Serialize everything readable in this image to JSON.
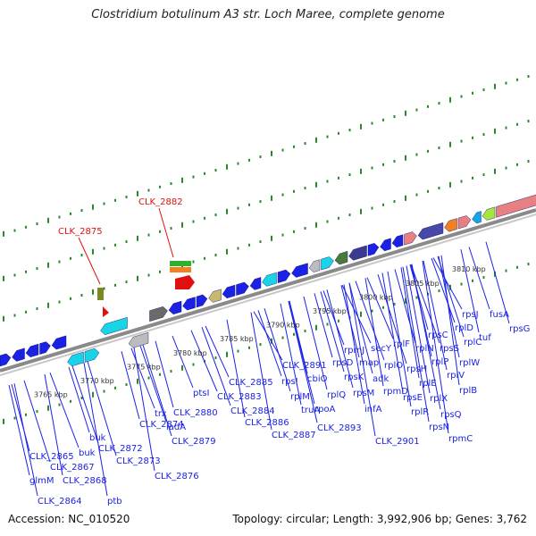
{
  "title": "Clostridium botulinum A3 str. Loch Maree, complete genome",
  "accession_label": "Accession: NC_010520",
  "summary_label": "Topology: circular; Length: 3,992,906 bp; Genes: 3,762",
  "colors": {
    "forward_gene": "#1b22e6",
    "reverse_gene": "#1b22e6",
    "rrna": "#e87f82",
    "trna": "#f0a050",
    "highlight_label": "#e01010",
    "tick": "#2a8a2a",
    "backbone": "#8a8a8a"
  },
  "axis_labels": [
    {
      "text": "3765 kbp",
      "pos": 3765
    },
    {
      "text": "3770 kbp",
      "pos": 3770
    },
    {
      "text": "3775 kbp",
      "pos": 3775
    },
    {
      "text": "3780 kbp",
      "pos": 3780
    },
    {
      "text": "3785 kbp",
      "pos": 3785
    },
    {
      "text": "3790 kbp",
      "pos": 3790
    },
    {
      "text": "3795 kbp",
      "pos": 3795
    },
    {
      "text": "3800 kbp",
      "pos": 3800
    },
    {
      "text": "3805 kbp",
      "pos": 3805
    },
    {
      "text": "3810 kbp",
      "pos": 3810
    }
  ],
  "highlighted_genes": [
    "CLK_2875",
    "CLK_2882"
  ],
  "gene_labels": [
    "CLK_2865",
    "glmM",
    "CLK_2864",
    "CLK_2867",
    "buk",
    "CLK_2868",
    "buk",
    "ptb",
    "CLK_2872",
    "CLK_2873",
    "CLK_2874",
    "CLK_2876",
    "trx",
    "iadA",
    "CLK_2879",
    "CLK_2880",
    "ptsI",
    "CLK_2885",
    "CLK_2883",
    "CLK_2884",
    "CLK_2886",
    "CLK_2887",
    "rpsI",
    "rplM",
    "CLK_2891",
    "cbiO",
    "truA",
    "rplQ",
    "rpoA",
    "CLK_2893",
    "rpsD",
    "rpmJ",
    "rpsK",
    "rpsM",
    "secY",
    "map",
    "infA",
    "adk",
    "CLK_2901",
    "rplO",
    "rpmD",
    "rpsE",
    "rplR",
    "rplF",
    "rpsH",
    "rplE",
    "rplN",
    "rplX",
    "rpsN",
    "rpsQ",
    "rpsC",
    "rplP",
    "rplV",
    "rpmC",
    "rpsS",
    "rplB",
    "rplW",
    "rplD",
    "rplC",
    "rpsJ",
    "tuf",
    "fusA",
    "rpsG"
  ]
}
